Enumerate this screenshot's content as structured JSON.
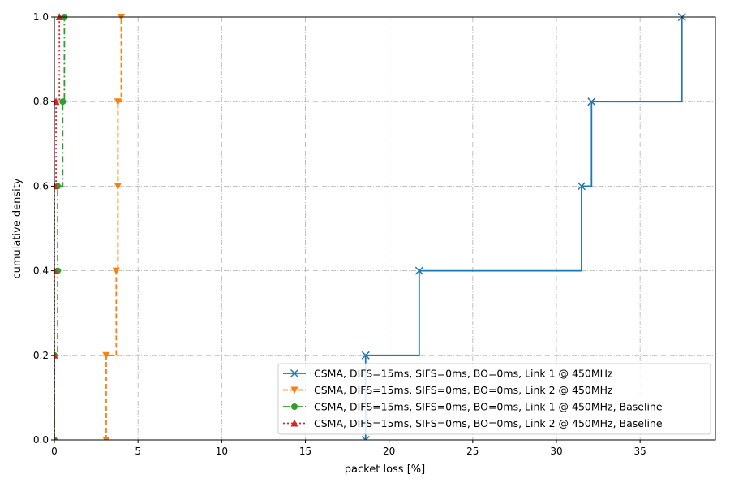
{
  "chart_data": {
    "type": "line",
    "step": true,
    "xlabel": "packet loss [%]",
    "ylabel": "cumulative density",
    "xlim": [
      0,
      39.5
    ],
    "ylim": [
      0,
      1.0
    ],
    "x_ticks": [
      0,
      5,
      10,
      15,
      20,
      25,
      30,
      35
    ],
    "y_ticks": [
      0.0,
      0.2,
      0.4,
      0.6,
      0.8,
      1.0
    ],
    "x_tick_labels": [
      "0",
      "5",
      "10",
      "15",
      "20",
      "25",
      "30",
      "35"
    ],
    "y_tick_labels": [
      "0.0",
      "0.2",
      "0.4",
      "0.6",
      "0.8",
      "1.0"
    ],
    "grid": true,
    "legend_position": "lower-right",
    "series": [
      {
        "name": "CSMA, DIFS=15ms, SIFS=0ms, BO=0ms, Link 1 @ 450MHz",
        "color": "#1f77b4",
        "linestyle": "solid",
        "marker": "x",
        "x": [
          18.6,
          18.6,
          21.8,
          31.5,
          32.1,
          37.5
        ],
        "y": [
          0.0,
          0.2,
          0.4,
          0.6,
          0.8,
          1.0
        ]
      },
      {
        "name": "CSMA, DIFS=15ms, SIFS=0ms, BO=0ms, Link 2 @ 450MHz",
        "color": "#ff7f0e",
        "linestyle": "dashed",
        "marker": "triangle-down",
        "x": [
          3.1,
          3.1,
          3.7,
          3.8,
          3.8,
          4.0
        ],
        "y": [
          0.0,
          0.2,
          0.4,
          0.6,
          0.8,
          1.0
        ]
      },
      {
        "name": "CSMA, DIFS=15ms, SIFS=0ms, BO=0ms, Link 1 @ 450MHz,  Baseline",
        "color": "#2ca02c",
        "linestyle": "dashdot",
        "marker": "circle",
        "x": [
          0.0,
          0.0,
          0.2,
          0.2,
          0.5,
          0.6
        ],
        "y": [
          0.0,
          0.2,
          0.4,
          0.6,
          0.8,
          1.0
        ]
      },
      {
        "name": "CSMA, DIFS=15ms, SIFS=0ms, BO=0ms, Link 2 @ 450MHz,  Baseline",
        "color": "#d62728",
        "linestyle": "dotted",
        "marker": "triangle-up",
        "x": [
          0.0,
          0.0,
          0.0,
          0.0,
          0.1,
          0.3
        ],
        "y": [
          0.0,
          0.2,
          0.4,
          0.6,
          0.8,
          1.0
        ]
      }
    ]
  }
}
